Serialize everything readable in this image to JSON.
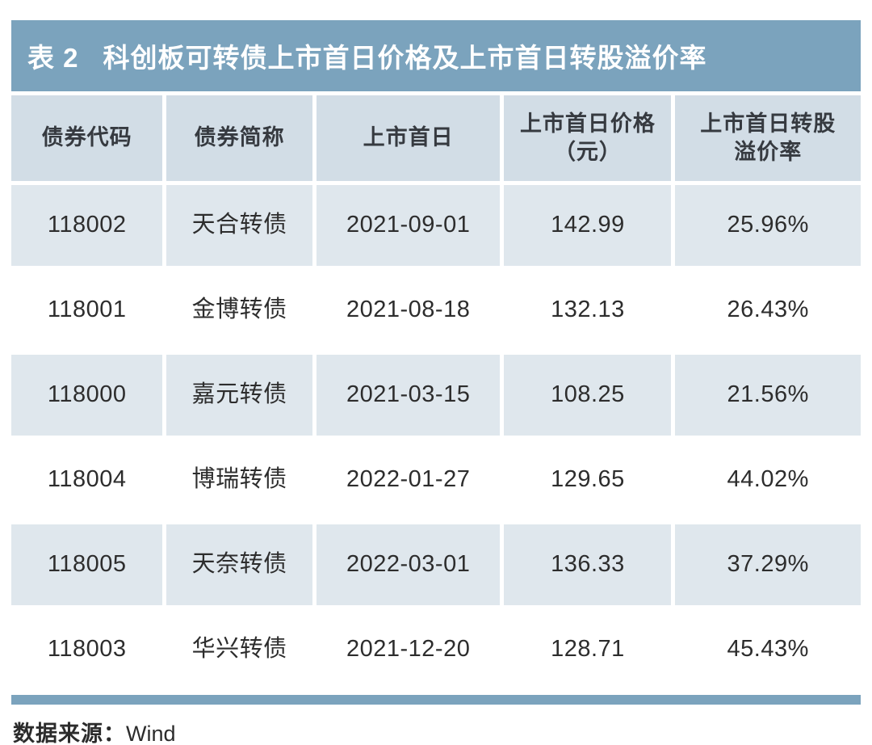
{
  "chart_data": {
    "type": "table",
    "title_prefix": "表 2",
    "title": "科创板可转债上市首日价格及上市首日转股溢价率",
    "columns": [
      {
        "line1": "债券代码",
        "line2": ""
      },
      {
        "line1": "债券简称",
        "line2": ""
      },
      {
        "line1": "上市首日",
        "line2": ""
      },
      {
        "line1": "上市首日价格",
        "line2": "（元）"
      },
      {
        "line1": "上市首日转股",
        "line2": "溢价率"
      }
    ],
    "rows": [
      [
        "118002",
        "天合转债",
        "2021-09-01",
        "142.99",
        "25.96%"
      ],
      [
        "118001",
        "金博转债",
        "2021-08-18",
        "132.13",
        "26.43%"
      ],
      [
        "118000",
        "嘉元转债",
        "2021-03-15",
        "108.25",
        "21.56%"
      ],
      [
        "118004",
        "博瑞转债",
        "2022-01-27",
        "129.65",
        "44.02%"
      ],
      [
        "118005",
        "天奈转债",
        "2022-03-01",
        "136.33",
        "37.29%"
      ],
      [
        "118003",
        "华兴转债",
        "2021-12-20",
        "128.71",
        "45.43%"
      ]
    ],
    "source_label": "数据来源：",
    "source_value": "Wind"
  },
  "colors": {
    "title_bar": "#7ba3bd",
    "header_cell": "#d2dde6",
    "row_shaded": "#dfe7ed",
    "row_plain": "#ffffff",
    "title_text": "#ffffff",
    "body_text": "#2d2d2d"
  }
}
